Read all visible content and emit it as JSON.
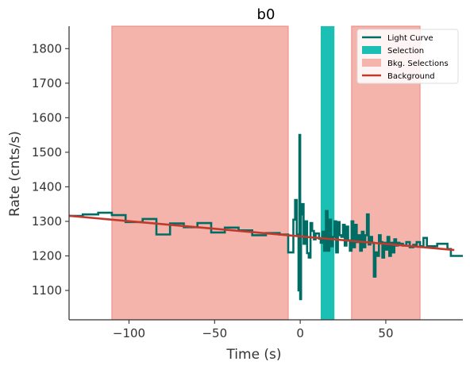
{
  "chart_data": {
    "type": "line",
    "title": "b0",
    "xlabel": "Time (s)",
    "ylabel": "Rate (cnts/s)",
    "xlim": [
      -135,
      95
    ],
    "ylim": [
      1015,
      1865
    ],
    "x_ticks": [
      -100,
      -50,
      0,
      50
    ],
    "x_tick_labels": [
      "−100",
      "−50",
      "0",
      "50"
    ],
    "y_ticks": [
      1100,
      1200,
      1300,
      1400,
      1500,
      1600,
      1700,
      1800
    ],
    "y_tick_labels": [
      "1100",
      "1200",
      "1300",
      "1400",
      "1500",
      "1600",
      "1700",
      "1800"
    ],
    "grid": false,
    "legend_position": "top-right",
    "legend": [
      {
        "label": "Light Curve",
        "kind": "line",
        "color": "#006d65"
      },
      {
        "label": "Selection",
        "kind": "patch",
        "color": "#1cbfb3"
      },
      {
        "label": "Bkg. Selections",
        "kind": "patch",
        "color": "#f4b3ab"
      },
      {
        "label": "Background",
        "kind": "line",
        "color": "#c0392b"
      }
    ],
    "selection": {
      "range": [
        12,
        20
      ],
      "color": "#1cbfb3"
    },
    "bkg_selections": {
      "ranges": [
        [
          -110,
          -7
        ],
        [
          30,
          70
        ]
      ],
      "color": "#f4b3ab",
      "edge_color": "#ea8a80"
    },
    "background_fit": {
      "x": [
        -135,
        90
      ],
      "y": [
        1316,
        1217
      ],
      "color": "#c0392b"
    },
    "light_curve": {
      "color": "#006d65",
      "x": [
        -135,
        -127,
        -118,
        -110,
        -102,
        -92,
        -84,
        -76,
        -68,
        -60,
        -52,
        -44,
        -36,
        -28,
        -20,
        -12,
        -7,
        -4,
        -3,
        -2,
        -1,
        -0.5,
        0,
        0.5,
        1,
        2,
        3,
        4,
        5,
        6,
        7,
        8,
        9,
        10,
        11,
        12,
        13,
        14,
        15,
        16,
        17,
        18,
        19,
        20,
        21,
        22,
        23,
        24,
        25,
        26,
        27,
        28,
        29,
        30,
        31,
        32,
        33,
        34,
        35,
        36,
        37,
        38,
        39,
        40,
        41,
        42,
        43,
        44,
        45,
        46,
        47,
        48,
        49,
        50,
        51,
        52,
        53,
        54,
        55,
        56,
        57,
        58,
        59,
        60,
        62,
        64,
        66,
        68,
        70,
        72,
        74,
        80,
        86,
        88,
        95
      ],
      "y": [
        1316,
        1320,
        1325,
        1318,
        1298,
        1307,
        1262,
        1294,
        1283,
        1295,
        1268,
        1282,
        1274,
        1260,
        1266,
        1262,
        1210,
        1305,
        1362,
        1262,
        1100,
        1550,
        1075,
        1320,
        1350,
        1235,
        1300,
        1208,
        1195,
        1295,
        1272,
        1248,
        1265,
        1265,
        1250,
        1238,
        1270,
        1215,
        1330,
        1215,
        1305,
        1228,
        1255,
        1300,
        1210,
        1298,
        1260,
        1255,
        1290,
        1230,
        1285,
        1245,
        1215,
        1300,
        1225,
        1290,
        1240,
        1260,
        1215,
        1270,
        1225,
        1260,
        1320,
        1233,
        1255,
        1238,
        1140,
        1210,
        1200,
        1260,
        1240,
        1195,
        1238,
        1218,
        1255,
        1200,
        1238,
        1210,
        1248,
        1230,
        1238,
        1232,
        1235,
        1230,
        1240,
        1225,
        1232,
        1240,
        1228,
        1252,
        1228,
        1235,
        1220,
        1200,
        1200
      ]
    }
  }
}
